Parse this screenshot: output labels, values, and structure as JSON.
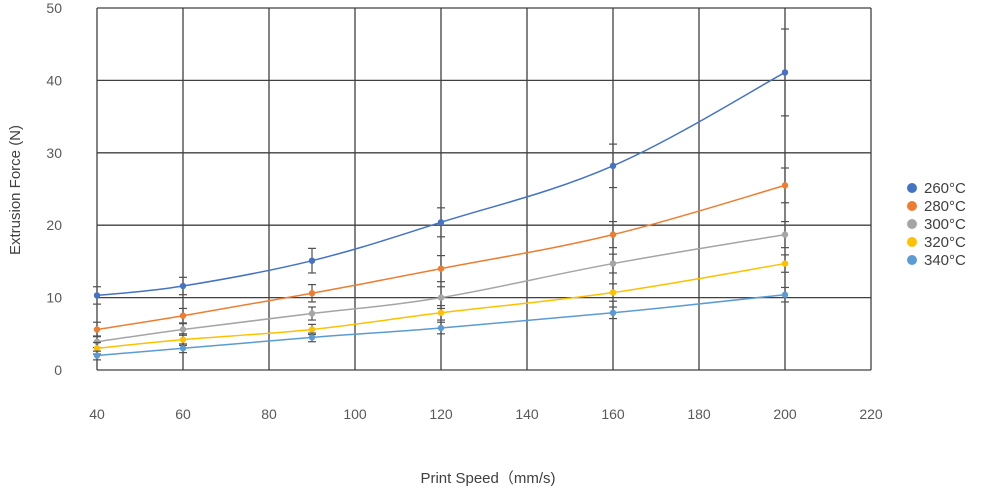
{
  "chart_data": {
    "type": "line",
    "title": "",
    "xlabel": "Print Speed（mm/s)",
    "ylabel": "Extrusion Force (N)",
    "xlim": [
      40,
      220
    ],
    "ylim": [
      0,
      50
    ],
    "xticks": [
      40,
      60,
      80,
      100,
      120,
      140,
      160,
      180,
      200,
      220
    ],
    "yticks": [
      0,
      10,
      20,
      30,
      40,
      50
    ],
    "grid": true,
    "legend_position": "right",
    "x": [
      40,
      60,
      90,
      120,
      160,
      200
    ],
    "series": [
      {
        "name": "260°C",
        "color": "#4472c4",
        "values": [
          10.3,
          11.6,
          15.1,
          20.4,
          28.2,
          41.1
        ],
        "errors": [
          1.2,
          1.2,
          1.7,
          2.0,
          3.0,
          6.0
        ]
      },
      {
        "name": "280°C",
        "color": "#ed7d31",
        "values": [
          5.6,
          7.5,
          10.6,
          14.0,
          18.7,
          25.5
        ],
        "errors": [
          1.0,
          1.0,
          1.2,
          1.8,
          1.8,
          2.4
        ]
      },
      {
        "name": "300°C",
        "color": "#a5a5a5",
        "values": [
          3.9,
          5.6,
          7.8,
          10.0,
          14.7,
          18.7
        ],
        "errors": [
          0.8,
          0.8,
          0.9,
          1.5,
          1.3,
          1.8
        ]
      },
      {
        "name": "320°C",
        "color": "#ffc000",
        "values": [
          3.0,
          4.2,
          5.6,
          7.9,
          10.7,
          14.7
        ],
        "errors": [
          0.8,
          0.8,
          0.7,
          1.0,
          1.2,
          1.2
        ]
      },
      {
        "name": "340°C",
        "color": "#5b9bd5",
        "values": [
          2.0,
          3.0,
          4.5,
          5.8,
          7.9,
          10.4
        ],
        "errors": [
          0.6,
          0.6,
          0.6,
          0.8,
          0.8,
          1.0
        ]
      }
    ]
  }
}
